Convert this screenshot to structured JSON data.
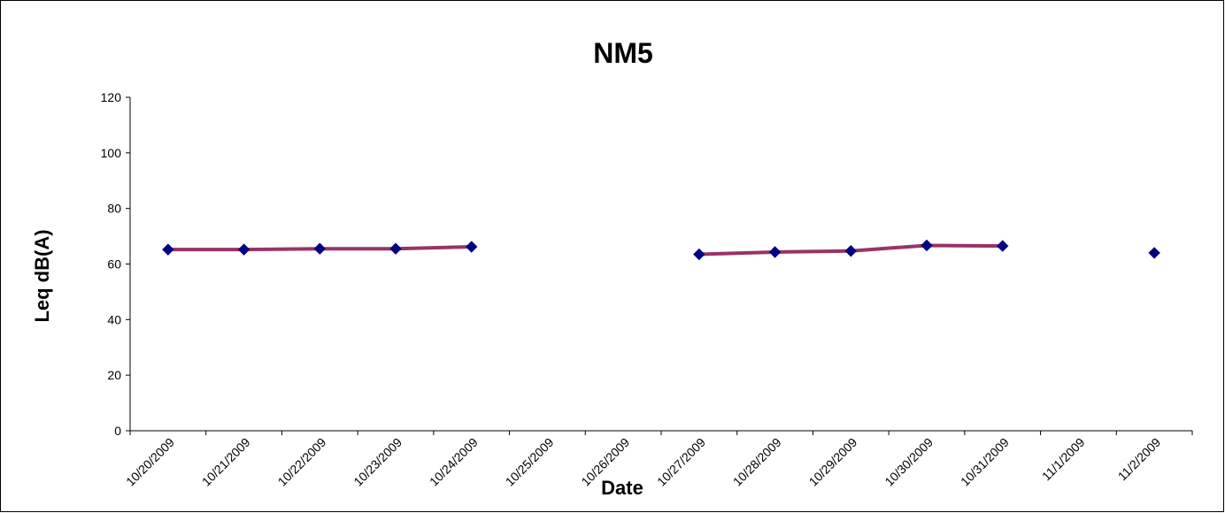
{
  "chart_data": {
    "type": "line",
    "title": "NM5",
    "xlabel": "Date",
    "ylabel": "Leq dB(A)",
    "ylim": [
      0,
      120
    ],
    "yticks": [
      0,
      20,
      40,
      60,
      80,
      100,
      120
    ],
    "categories": [
      "10/20/2009",
      "10/21/2009",
      "10/22/2009",
      "10/23/2009",
      "10/24/2009",
      "10/25/2009",
      "10/26/2009",
      "10/27/2009",
      "10/28/2009",
      "10/29/2009",
      "10/30/2009",
      "10/31/2009",
      "11/1/2009",
      "11/2/2009"
    ],
    "grid": false,
    "legend": "none",
    "series": [
      {
        "values": [
          65.2,
          65.2,
          65.5,
          65.5,
          66.2,
          null,
          null,
          63.5,
          64.3,
          64.7,
          66.7,
          66.5,
          null,
          64.0
        ],
        "line_color": "#993366",
        "marker_color": "#000080",
        "marker": "diamond"
      }
    ]
  }
}
